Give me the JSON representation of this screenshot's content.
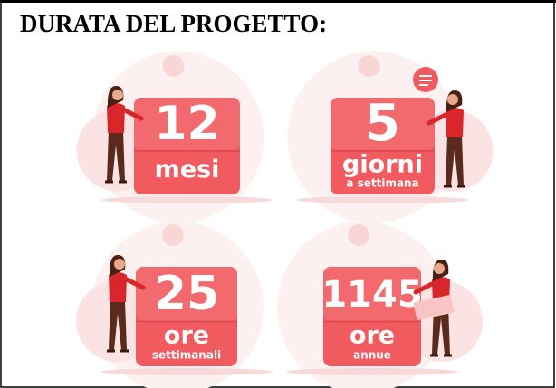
{
  "header": {
    "title": "DURATA DEL PROGETTO:"
  },
  "cards": [
    {
      "number": 12,
      "unit": "mesi"
    },
    {
      "number": 5,
      "unit": "giorni",
      "note": "a settimana"
    },
    {
      "number": 25,
      "unit": "ore",
      "note": "settimanali"
    },
    {
      "number": 1145,
      "unit": "ore",
      "note": "annue"
    }
  ]
}
